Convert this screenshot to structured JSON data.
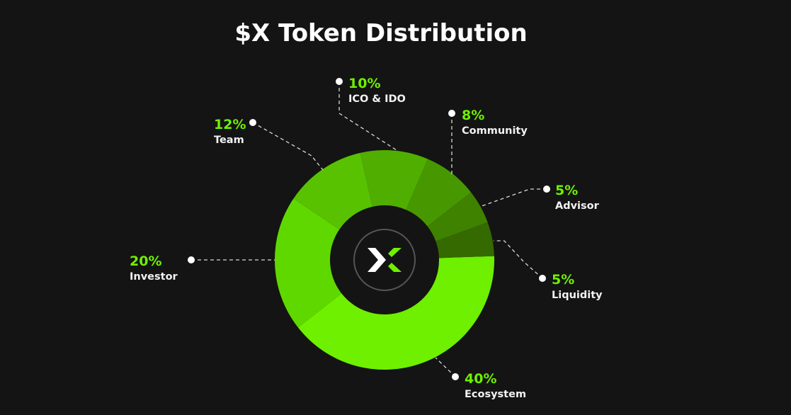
{
  "chart_data": {
    "type": "pie",
    "variant": "donut",
    "title": "$X Token Distribution",
    "slices": [
      {
        "label": "Ecosystem",
        "value": 40,
        "pct_label": "40%",
        "color": "#6ef000"
      },
      {
        "label": "Investor",
        "value": 20,
        "pct_label": "20%",
        "color": "#5fd800"
      },
      {
        "label": "Team",
        "value": 12,
        "pct_label": "12%",
        "color": "#58c200"
      },
      {
        "label": "ICO & IDO",
        "value": 10,
        "pct_label": "10%",
        "color": "#50ae00"
      },
      {
        "label": "Community",
        "value": 8,
        "pct_label": "8%",
        "color": "#479800"
      },
      {
        "label": "Advisor",
        "value": 5,
        "pct_label": "5%",
        "color": "#3e8200"
      },
      {
        "label": "Liquidity",
        "value": 5,
        "pct_label": "5%",
        "color": "#346a00"
      }
    ],
    "center_icon": "x-logo-icon",
    "colors": {
      "background": "#141414",
      "accent": "#6ef000",
      "label": "#f2f2f2"
    }
  }
}
